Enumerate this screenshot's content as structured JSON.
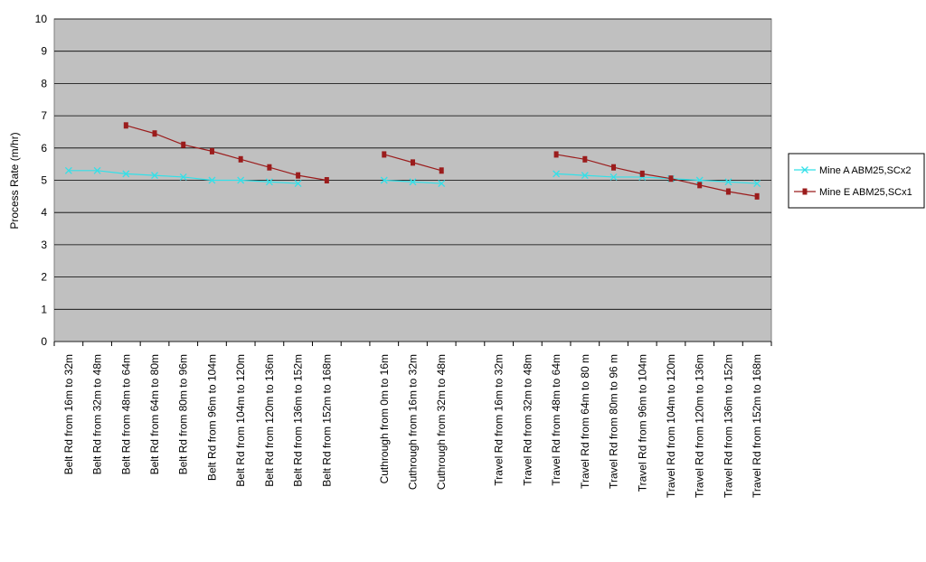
{
  "chart_data": {
    "type": "line",
    "y_label": "Process Rate (m/hr)",
    "categories": [
      "Belt Rd from 16m to 32m",
      "Belt Rd from 32m to 48m",
      "Belt Rd from 48m to 64m",
      "Belt Rd from 64m to 80m",
      "Belt Rd from 80m to 96m",
      "Belt Rd from 96m to 104m",
      "Belt Rd from 104m to 120m",
      "Belt Rd from 120m to 136m",
      "Belt Rd from 136m to 152m",
      "Belt Rd from 152m to 168m",
      null,
      "Cuthrough from 0m to 16m",
      "Cuthrough from 16m to 32m",
      "Cuthrough from 32m to 48m",
      null,
      "Travel Rd from 16m to 32m",
      "Travel Rd from 32m to 48m",
      "Travel Rd from 48m to 64m",
      "Travel Rd from 64m to 80 m",
      "Travel Rd from 80m to 96 m",
      "Travel Rd from 96m to 104m",
      "Travel Rd from 104m to 120m",
      "Travel Rd from 120m to 136m",
      "Travel Rd from 136m to 152m",
      "Travel Rd from 152m to 168m"
    ],
    "series": [
      {
        "name": "Mine A ABM25,SCx2",
        "color": "#33e0e8",
        "marker": "x",
        "values": [
          5.3,
          5.3,
          5.2,
          5.15,
          5.1,
          5.0,
          5.0,
          4.95,
          4.9,
          null,
          null,
          5.0,
          4.95,
          4.9,
          null,
          null,
          null,
          5.2,
          5.15,
          5.1,
          5.1,
          5.05,
          5.0,
          4.95,
          4.9
        ]
      },
      {
        "name": "Mine E ABM25,SCx1",
        "color": "#9b1c1c",
        "marker": "square",
        "values": [
          null,
          null,
          6.7,
          6.45,
          6.1,
          5.9,
          5.65,
          5.4,
          5.15,
          5.0,
          null,
          5.8,
          5.55,
          5.3,
          null,
          null,
          null,
          5.8,
          5.65,
          5.4,
          5.2,
          5.05,
          4.85,
          4.65,
          4.5
        ]
      }
    ],
    "ylim": [
      0,
      10
    ],
    "yticks": [
      0,
      1,
      2,
      3,
      4,
      5,
      6,
      7,
      8,
      9,
      10
    ],
    "grid": true,
    "legend": "right"
  }
}
